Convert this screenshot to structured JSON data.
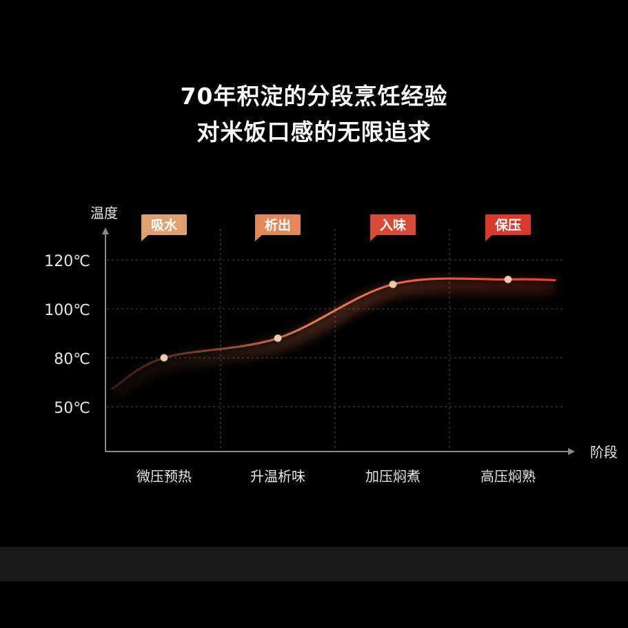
{
  "headline": {
    "line1": "70年积淀的分段烹饪经验",
    "line2": "对米饭口感的无限追求"
  },
  "colors": {
    "background": "#000000",
    "footer_band": "#1a1a1a",
    "axis": "#8a8a8a",
    "grid": "#4a4a4a",
    "label_text": "#e6e6e6",
    "curve_start": "#7a4a2c",
    "curve_mid": "#e07a55",
    "curve_end": "#e8402c",
    "point": "#f2c9a8"
  },
  "chart_data": {
    "type": "line",
    "title": "",
    "ylabel": "温度",
    "xlabel": "阶段",
    "y_ticks": [
      {
        "value": 50,
        "label": "50℃"
      },
      {
        "value": 80,
        "label": "80℃"
      },
      {
        "value": 100,
        "label": "100℃"
      },
      {
        "value": 120,
        "label": "120℃"
      }
    ],
    "categories": [
      "微压预热",
      "升温析味",
      "加压焖煮",
      "高压焖熟"
    ],
    "stage_tags": [
      {
        "label": "吸水",
        "color": "#e0a071"
      },
      {
        "label": "析出",
        "color": "#e3865a"
      },
      {
        "label": "入味",
        "color": "#d84a36"
      },
      {
        "label": "保压",
        "color": "#d93a2c"
      }
    ],
    "series": [
      {
        "values": [
          80,
          88,
          110,
          112
        ]
      }
    ],
    "grid": true
  }
}
